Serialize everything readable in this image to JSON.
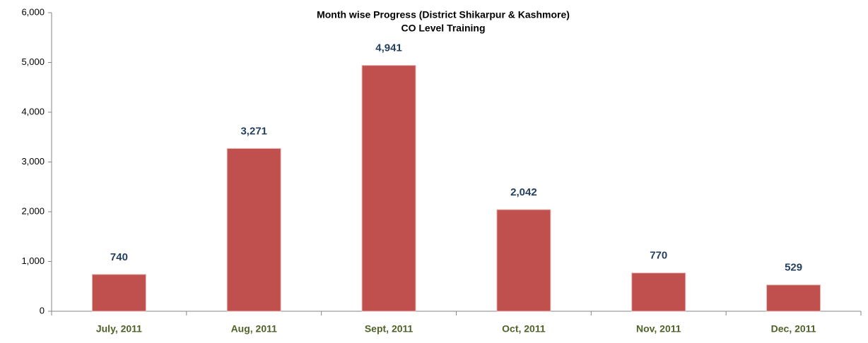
{
  "chart_data": {
    "type": "bar",
    "title": "Month wise Progress (District Shikarpur & Kashmore)",
    "subtitle": "CO Level Training",
    "categories": [
      "July, 2011",
      "Aug, 2011",
      "Sept, 2011",
      "Oct, 2011",
      "Nov, 2011",
      "Dec, 2011"
    ],
    "values": [
      740,
      3271,
      4941,
      2042,
      770,
      529
    ],
    "value_labels": [
      "740",
      "3,271",
      "4,941",
      "2,042",
      "770",
      "529"
    ],
    "color": "#c0504d",
    "ylim": [
      0,
      6000
    ],
    "yticks": [
      0,
      {
        "value": 1000,
        "label": "1,000"
      },
      {
        "value": 2000,
        "label": "2,000"
      },
      {
        "value": 3000,
        "label": "3,000"
      },
      {
        "value": 4000,
        "label": "4,000"
      },
      {
        "value": 5000,
        "label": "5,000"
      },
      {
        "value": 6000,
        "label": "6,000"
      }
    ],
    "grid": false
  }
}
